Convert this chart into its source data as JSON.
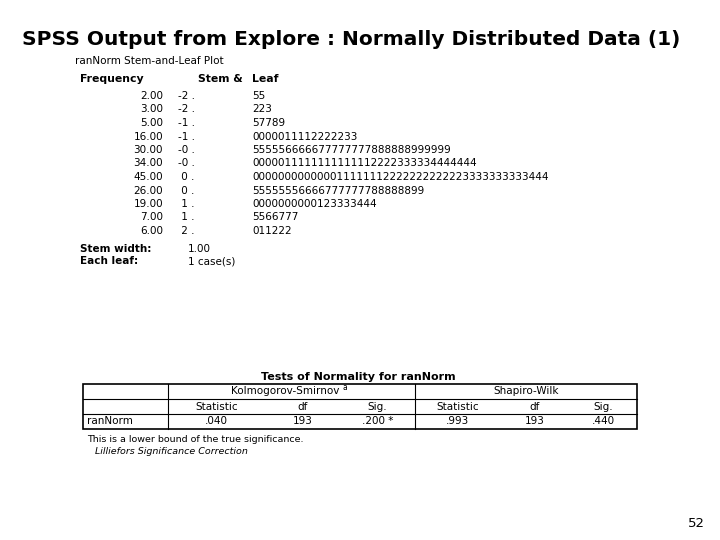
{
  "title": "SPSS Output from Explore : Normally Distributed Data (1)",
  "subtitle": "ranNorm Stem-and-Leaf Plot",
  "stem_data": [
    [
      "2.00",
      "-2 .",
      "55"
    ],
    [
      "3.00",
      "-2 .",
      "223"
    ],
    [
      "5.00",
      "-1 .",
      "57789"
    ],
    [
      "16.00",
      "-1 .",
      "0000011112222233"
    ],
    [
      "30.00",
      "-0 .",
      "555556666677777777888888999999"
    ],
    [
      "34.00",
      "-0 .",
      "0000011111111111112222333334444444"
    ],
    [
      "45.00",
      " 0 .",
      "000000000000011111112222222222223333333333444"
    ],
    [
      "26.00",
      " 0 .",
      "55555556666777777788888899"
    ],
    [
      "19.00",
      " 1 .",
      "0000000000123333444"
    ],
    [
      "7.00",
      " 1 .",
      "5566777"
    ],
    [
      "6.00",
      " 2 .",
      "011222"
    ]
  ],
  "stem_width_label": "Stem width:",
  "stem_width_value": "1.00",
  "each_leaf_label": "Each leaf:",
  "each_leaf_value": "1 case(s)",
  "table_title": "Tests of Normality for ranNorm",
  "col_group1": "Kolmogorov-Smirnov",
  "col_group2": "Shapiro-Wilk",
  "sub_cols": [
    "Statistic",
    "df",
    "Sig.",
    "Statistic",
    "df",
    "Sig."
  ],
  "row_label": "ranNorm",
  "row_values": [
    ".040",
    "193",
    ".200 *",
    ".993",
    "193",
    ".440"
  ],
  "footnote1": "This is a lower bound of the true significance.",
  "footnote2": "Lilliefors Significance Correction",
  "superscript": "a",
  "page_number": "52",
  "bg_color": "#ffffff",
  "text_color": "#000000"
}
